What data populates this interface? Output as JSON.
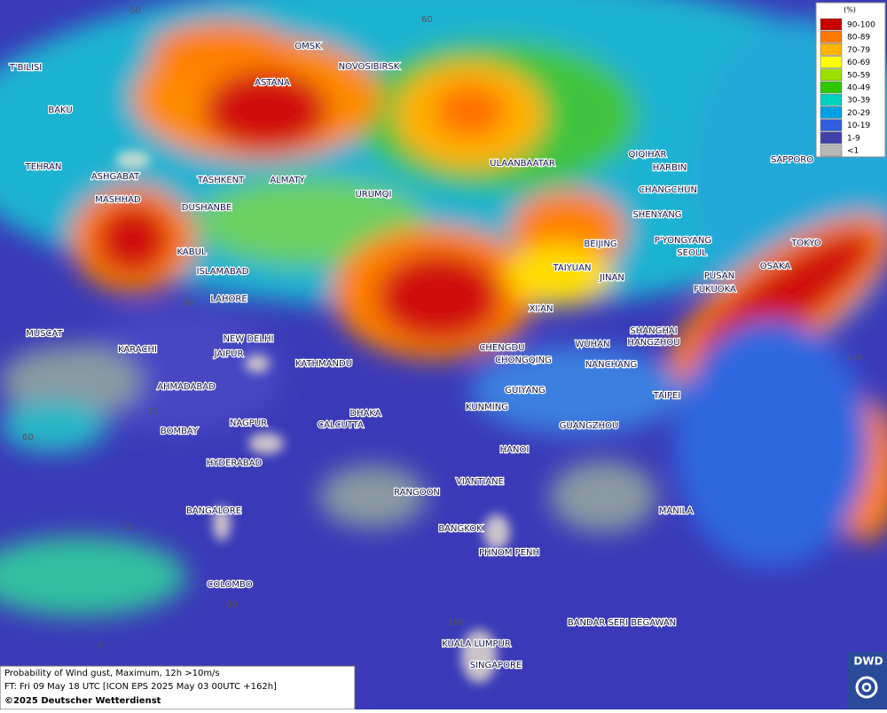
{
  "legend": {
    "title": "(%)",
    "items": [
      {
        "label": "90-100",
        "color": "#c80000"
      },
      {
        "label": "80-89",
        "color": "#ff7a00"
      },
      {
        "label": "70-79",
        "color": "#ffb400"
      },
      {
        "label": "60-69",
        "color": "#ffff00"
      },
      {
        "label": "50-59",
        "color": "#9be000"
      },
      {
        "label": "40-49",
        "color": "#2ec800"
      },
      {
        "label": "30-39",
        "color": "#00d2c0"
      },
      {
        "label": "20-29",
        "color": "#00a0e6"
      },
      {
        "label": "10-19",
        "color": "#3060e0"
      },
      {
        "label": "1-9",
        "color": "#4040a8"
      },
      {
        "label": "<1",
        "color": "#b8b8b8"
      }
    ]
  },
  "caption": {
    "line1": "Probability of Wind gust, Maximum, 12h >10m/s",
    "line2": "FT: Fri 09 May 18 UTC [ICON EPS 2025 May 03 00UTC +162h]",
    "line3": "©2025 Deutscher Wetterdienst"
  },
  "logo": "DWD",
  "cities": [
    "OMSK",
    "NOVOSIBIRSK",
    "ASTANA",
    "T'BILISI",
    "BAKU",
    "TEHRAN",
    "ASHGABAT",
    "MASHHAD",
    "TASHKENT",
    "ALMATY",
    "DUSHANBE",
    "URUMQI",
    "ULAANBAATAR",
    "QIQIHAR",
    "HARBIN",
    "SAPPORO",
    "CHANGCHUN",
    "SHENYANG",
    "KABUL",
    "ISLAMABAD",
    "BEIJING",
    "P'YONGYANG",
    "SEOUL",
    "TOKYO",
    "OSAKA",
    "TAIYUAN",
    "JINAN",
    "PUSAN",
    "FUKUOKA",
    "LAHORE",
    "XI'AN",
    "NEW DELHI",
    "MUSCAT",
    "KARACHI",
    "JAIPUR",
    "KATHMANDU",
    "CHENGDU",
    "CHONGQING",
    "WUHAN",
    "SHANGHAI",
    "HANGZHOU",
    "NANCHANG",
    "AHMADABAD",
    "GUIYANG",
    "TAIPEI",
    "KUNMING",
    "DHAKA",
    "CALCUTTA",
    "NAGPUR",
    "BOMBAY",
    "GUANGZHOU",
    "HANOI",
    "HYDERABAD",
    "VIANTIANE",
    "RANGOON",
    "MANILA",
    "BANGALORE",
    "BANGKOK",
    "PHNOM PENH",
    "COLOMBO",
    "BANDAR SERI BEGAWAN",
    "KUALA LUMPUR",
    "SINGAPORE"
  ],
  "grid_labels": [
    "50",
    "60",
    "30",
    "20",
    "60",
    "10",
    "80",
    "100",
    "0",
    "140"
  ]
}
